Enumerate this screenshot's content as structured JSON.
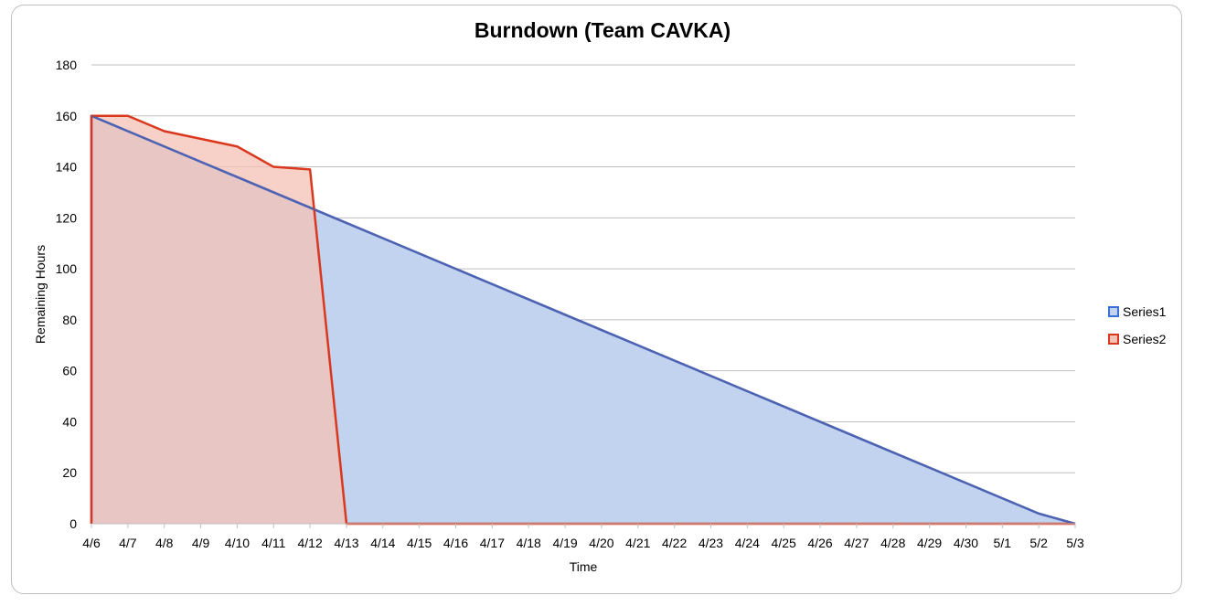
{
  "chart_data": {
    "type": "area",
    "title": "Burndown (Team CAVKA)",
    "xlabel": "Time",
    "ylabel": "Remaining  Hours",
    "ylim": [
      0,
      180
    ],
    "yticks": [
      0,
      20,
      40,
      60,
      80,
      100,
      120,
      140,
      160,
      180
    ],
    "grid": true,
    "legend_position": "right",
    "categories": [
      "4/6",
      "4/7",
      "4/8",
      "4/9",
      "4/10",
      "4/11",
      "4/12",
      "4/13",
      "4/14",
      "4/15",
      "4/16",
      "4/17",
      "4/18",
      "4/19",
      "4/20",
      "4/21",
      "4/22",
      "4/23",
      "4/24",
      "4/25",
      "4/26",
      "4/27",
      "4/28",
      "4/29",
      "4/30",
      "5/1",
      "5/2",
      "5/3"
    ],
    "series": [
      {
        "name": "Series1",
        "color": "#3a6fd8",
        "fill": "#c2d3f0",
        "values": [
          160,
          154,
          148,
          142,
          136,
          130,
          124,
          118,
          112,
          106,
          100,
          94,
          88,
          82,
          76,
          70,
          64,
          58,
          52,
          46,
          40,
          34,
          28,
          22,
          16,
          10,
          4,
          0
        ]
      },
      {
        "name": "Series2",
        "color": "#d9381e",
        "fill": "#f4c1b5",
        "values": [
          160,
          160,
          154,
          151,
          148,
          140,
          139,
          0,
          0,
          0,
          0,
          0,
          0,
          0,
          0,
          0,
          0,
          0,
          0,
          0,
          0,
          0,
          0,
          0,
          0,
          0,
          0,
          0
        ]
      }
    ]
  }
}
